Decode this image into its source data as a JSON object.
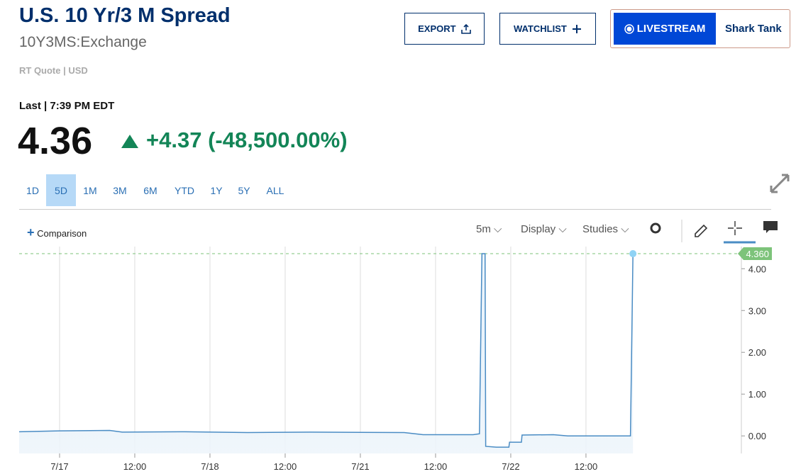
{
  "header": {
    "title": "U.S. 10 Yr/3 M Spread",
    "symbol": "10Y3MS:Exchange",
    "quote_info": "RT Quote | USD",
    "last_time": "Last | 7:39 PM EDT",
    "price": "4.36",
    "change": "+4.37",
    "change_percent": "(-48,500.00%)"
  },
  "buttons": {
    "export": "EXPORT",
    "watchlist": "WATCHLIST",
    "livestream": "LIVESTREAM",
    "show": "Shark Tank"
  },
  "ranges": [
    "1D",
    "5D",
    "1M",
    "3M",
    "6M",
    "YTD",
    "1Y",
    "5Y",
    "ALL"
  ],
  "toolbar": {
    "comparison": "Comparison",
    "interval": "5m",
    "display": "Display",
    "studies": "Studies"
  },
  "chart_data": {
    "type": "line",
    "color": "#4a8cc4",
    "x": [
      -6.45,
      0,
      8,
      10,
      20,
      30,
      40,
      55,
      58,
      66,
      67,
      67.4,
      67.9,
      68.0,
      69.7,
      71.7,
      71.8,
      73.7,
      73.8,
      78.8,
      81.1,
      91.1,
      91.5
    ],
    "values": [
      0.1,
      0.12,
      0.13,
      0.09,
      0.1,
      0.08,
      0.09,
      0.08,
      0.03,
      0.03,
      0.05,
      4.36,
      4.36,
      -0.25,
      -0.27,
      -0.27,
      -0.15,
      -0.15,
      0.02,
      0.03,
      0,
      0,
      4.36
    ],
    "xlim": [
      -6.45,
      108.8
    ],
    "xticks": [
      {
        "value": 0,
        "label": "7/17"
      },
      {
        "value": 12,
        "label": "12:00"
      },
      {
        "value": 24,
        "label": "7/18"
      },
      {
        "value": 36,
        "label": "12:00"
      },
      {
        "value": 48,
        "label": "7/21"
      },
      {
        "value": 60,
        "label": "12:00"
      },
      {
        "value": 72,
        "label": "7/22"
      },
      {
        "value": 84,
        "label": "12:00"
      }
    ],
    "ylim": [
      -0.42,
      4.53
    ],
    "yticks": [
      {
        "value": 0,
        "label": "0.00"
      },
      {
        "value": 1,
        "label": "1.00"
      },
      {
        "value": 2,
        "label": "2.00"
      },
      {
        "value": 3,
        "label": "3.00"
      },
      {
        "value": 4,
        "label": "4.00"
      }
    ],
    "reference_line": {
      "value": 4.36,
      "label": "4.360",
      "color": "#7dc37a"
    },
    "grid": true
  }
}
